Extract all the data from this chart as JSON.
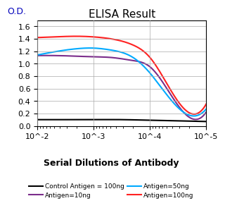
{
  "title": "ELISA Result",
  "ylabel": "O.D.",
  "xlabel": "Serial Dilutions of Antibody",
  "xlim": [
    1e-05,
    0.01
  ],
  "ylim": [
    0,
    1.7
  ],
  "yticks": [
    0,
    0.2,
    0.4,
    0.6,
    0.8,
    1.0,
    1.2,
    1.4,
    1.6
  ],
  "xticks": [
    0.01,
    0.001,
    0.0001,
    1e-05
  ],
  "xticklabels": [
    "10^-2",
    "10^-3",
    "10^-4",
    "10^-5"
  ],
  "lines": {
    "control": {
      "color": "#000000",
      "label": "Control Antigen = 100ng",
      "x": [
        0.01,
        0.003,
        0.001,
        0.0003,
        0.0001,
        3e-05,
        1e-05
      ],
      "y": [
        0.1,
        0.1,
        0.1,
        0.1,
        0.09,
        0.08,
        0.07
      ]
    },
    "antigen10": {
      "color": "#7B2D8B",
      "label": "Antigen=10ng",
      "x": [
        0.01,
        0.005,
        0.002,
        0.001,
        0.0005,
        0.0002,
        0.0001,
        5e-05,
        1e-05
      ],
      "y": [
        1.13,
        1.13,
        1.12,
        1.11,
        1.1,
        1.05,
        0.95,
        0.6,
        0.22
      ]
    },
    "antigen50": {
      "color": "#00AAFF",
      "label": "Antigen=50ng",
      "x": [
        0.01,
        0.005,
        0.002,
        0.001,
        0.0005,
        0.0002,
        0.0001,
        5e-05,
        1e-05
      ],
      "y": [
        1.14,
        1.19,
        1.24,
        1.25,
        1.22,
        1.1,
        0.85,
        0.5,
        0.27
      ]
    },
    "antigen100": {
      "color": "#FF2222",
      "label": "Antigen=100ng",
      "x": [
        0.01,
        0.005,
        0.002,
        0.001,
        0.0005,
        0.0002,
        0.0001,
        5e-05,
        1e-05
      ],
      "y": [
        1.42,
        1.43,
        1.44,
        1.43,
        1.4,
        1.3,
        1.1,
        0.68,
        0.35
      ]
    }
  },
  "legend_items": [
    {
      "label": "Control Antigen = 100ng",
      "color": "#000000"
    },
    {
      "label": "Antigen=10ng",
      "color": "#7B2D8B"
    },
    {
      "label": "Antigen=50ng",
      "color": "#00AAFF"
    },
    {
      "label": "Antigen=100ng",
      "color": "#FF2222"
    }
  ],
  "background_color": "#ffffff",
  "grid_color": "#aaaaaa",
  "title_fontsize": 11,
  "ylabel_fontsize": 9,
  "xlabel_fontsize": 9,
  "tick_fontsize": 8
}
